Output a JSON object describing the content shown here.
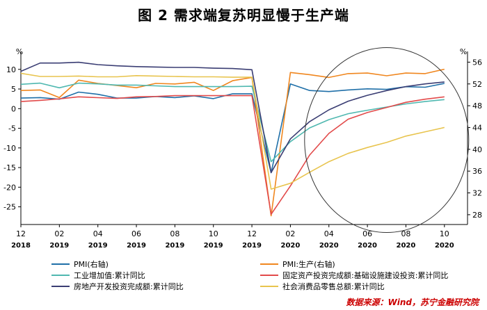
{
  "title": "图 2  需求端复苏明显慢于生产端",
  "source": "数据来源：Wind，苏宁金融研究院",
  "chart_data": {
    "type": "line",
    "left_axis": {
      "unit_label": "%",
      "ticks": [
        10,
        5,
        0,
        -5,
        -10,
        -15,
        -20,
        -25
      ],
      "range": [
        -29.5,
        13.5
      ]
    },
    "right_axis": {
      "unit_label": "%",
      "ticks": [
        56,
        52,
        48,
        44,
        40,
        36,
        32,
        28
      ],
      "range": [
        26.2,
        57.2
      ]
    },
    "x_ticks": [
      {
        "idx": 0,
        "month": "12",
        "year": "2018"
      },
      {
        "idx": 2,
        "month": "02",
        "year": "2019"
      },
      {
        "idx": 4,
        "month": "04",
        "year": "2019"
      },
      {
        "idx": 6,
        "month": "06",
        "year": "2019"
      },
      {
        "idx": 8,
        "month": "08",
        "year": "2019"
      },
      {
        "idx": 10,
        "month": "10",
        "year": "2019"
      },
      {
        "idx": 12,
        "month": "12",
        "year": "2019"
      },
      {
        "idx": 14,
        "month": "02",
        "year": "2020"
      },
      {
        "idx": 16,
        "month": "04",
        "year": "2020"
      },
      {
        "idx": 18,
        "month": "06",
        "year": "2020"
      },
      {
        "idx": 20,
        "month": "08",
        "year": "2020"
      },
      {
        "idx": 22,
        "month": "10",
        "year": "2020"
      }
    ],
    "x_range": [
      0,
      23.2
    ],
    "series": [
      {
        "name": "PMI(右轴)",
        "axis": "right",
        "color": "#1f6fa8",
        "values": [
          49.4,
          49.5,
          49.2,
          50.5,
          50.1,
          49.4,
          49.4,
          49.7,
          49.5,
          49.8,
          49.3,
          50.2,
          50.2,
          35.7,
          52.0,
          50.8,
          50.6,
          50.9,
          51.1,
          51.0,
          51.5,
          51.4,
          52.1
        ]
      },
      {
        "name": "PMI:生产(右轴)",
        "axis": "right",
        "color": "#f0861e",
        "values": [
          50.8,
          50.9,
          49.5,
          52.7,
          52.1,
          51.7,
          51.3,
          52.1,
          52.0,
          52.3,
          50.8,
          52.6,
          53.2,
          27.8,
          54.1,
          53.7,
          53.2,
          53.9,
          54.0,
          53.5,
          54.0,
          53.9,
          54.7
        ]
      },
      {
        "name": "工业增加值:累计同比",
        "axis": "left",
        "color": "#4fb8b0",
        "values": [
          6.2,
          6.5,
          5.3,
          6.5,
          6.3,
          6.0,
          6.0,
          5.8,
          5.6,
          5.6,
          5.6,
          5.6,
          5.7,
          -13.5,
          -8.4,
          -4.9,
          -2.8,
          -1.3,
          -0.4,
          0.4,
          1.2,
          1.8,
          2.3
        ]
      },
      {
        "name": "固定资产投资完成额:基础设施建设投资:累计同比",
        "axis": "left",
        "color": "#e24a4a",
        "values": [
          1.8,
          2.1,
          2.5,
          3.0,
          2.8,
          2.6,
          3.0,
          3.1,
          3.3,
          3.3,
          3.3,
          3.3,
          3.3,
          -26.9,
          -19.7,
          -11.8,
          -6.3,
          -2.7,
          -1.0,
          0.3,
          1.6,
          2.4,
          3.0
        ]
      },
      {
        "name": "房地产开发投资完成额:累计同比",
        "axis": "left",
        "color": "#3a3d73",
        "values": [
          9.5,
          11.6,
          11.6,
          11.8,
          11.2,
          10.9,
          10.7,
          10.6,
          10.5,
          10.5,
          10.3,
          10.2,
          9.9,
          -16.3,
          -7.7,
          -3.3,
          -0.3,
          1.9,
          3.4,
          4.6,
          5.6,
          6.3,
          6.8
        ]
      },
      {
        "name": "社会消费品零售总额:累计同比",
        "axis": "left",
        "color": "#e8c44e",
        "values": [
          9.0,
          8.2,
          8.2,
          8.3,
          8.1,
          8.1,
          8.4,
          8.3,
          8.2,
          8.1,
          8.1,
          8.0,
          8.0,
          -20.5,
          -19.0,
          -16.2,
          -13.5,
          -11.4,
          -9.9,
          -8.6,
          -7.0,
          -5.9,
          -4.8
        ]
      }
    ],
    "annotation": {
      "shape": "ellipse",
      "center_idx": 19,
      "center_left_value": -8,
      "description": ""
    }
  }
}
